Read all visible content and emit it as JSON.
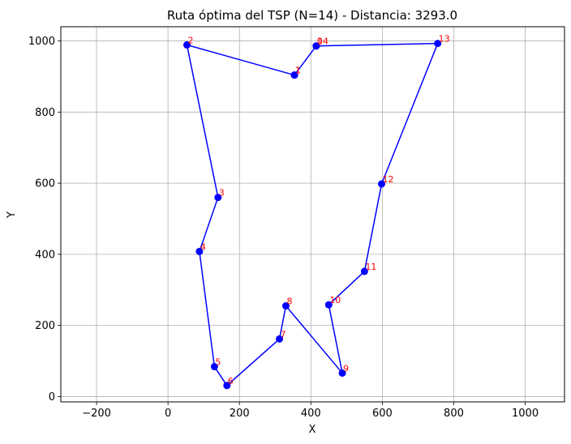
{
  "chart_data": {
    "type": "line",
    "title": "Ruta óptima del TSP (N=14) - Distancia: 3293.0",
    "xlabel": "X",
    "ylabel": "Y",
    "xlim": [
      -300,
      1110
    ],
    "ylim": [
      -15,
      1040
    ],
    "x_ticks": [
      -200,
      0,
      200,
      400,
      600,
      800,
      1000
    ],
    "y_ticks": [
      0,
      200,
      400,
      600,
      800,
      1000
    ],
    "grid": true,
    "line_color": "#0000ff",
    "label_color": "#ff0000",
    "route": [
      {
        "label": "1",
        "x": 354,
        "y": 904
      },
      {
        "label": "2",
        "x": 53,
        "y": 989
      },
      {
        "label": "3",
        "x": 140,
        "y": 560
      },
      {
        "label": "4",
        "x": 88,
        "y": 408
      },
      {
        "label": "5",
        "x": 130,
        "y": 84
      },
      {
        "label": "6",
        "x": 165,
        "y": 31
      },
      {
        "label": "7",
        "x": 312,
        "y": 162
      },
      {
        "label": "8",
        "x": 330,
        "y": 255
      },
      {
        "label": "9",
        "x": 488,
        "y": 66
      },
      {
        "label": "10",
        "x": 450,
        "y": 258
      },
      {
        "label": "11",
        "x": 550,
        "y": 352
      },
      {
        "label": "12",
        "x": 598,
        "y": 598
      },
      {
        "label": "13",
        "x": 755,
        "y": 993
      },
      {
        "label": "14",
        "x": 415,
        "y": 986
      },
      {
        "label": "0",
        "x": 415,
        "y": 986
      },
      {
        "label": "1",
        "x": 354,
        "y": 904
      }
    ]
  }
}
